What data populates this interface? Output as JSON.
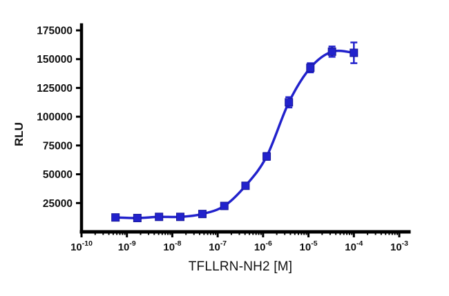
{
  "chart_data": {
    "type": "scatter",
    "title": "",
    "xlabel": "TFLLRN-NH2 [M]",
    "ylabel": "RLU",
    "x_scale": "log10",
    "x_exp_range": [
      -10,
      -3
    ],
    "xtick_exponents": [
      -10,
      -9,
      -8,
      -7,
      -6,
      -5,
      -4,
      -3
    ],
    "xtick_base": "10",
    "ylim": [
      0,
      175000
    ],
    "ytick_values": [
      25000,
      50000,
      75000,
      100000,
      125000,
      150000,
      175000
    ],
    "grid": false,
    "legend": "none",
    "series": [
      {
        "name": "TFLLRN-NH2",
        "marker": "square",
        "color": "#2222cc",
        "marker_edge_color": "#18189a",
        "x": [
          5.6e-10,
          1.7e-09,
          5.1e-09,
          1.5e-08,
          4.6e-08,
          1.4e-07,
          4.1e-07,
          1.2e-06,
          3.7e-06,
          1.1e-05,
          3.3e-05,
          0.0001
        ],
        "y": [
          12500,
          12000,
          13000,
          13000,
          15500,
          22500,
          40000,
          65500,
          112500,
          142500,
          156500,
          155500
        ],
        "yerr": [
          1000,
          800,
          800,
          800,
          1000,
          1500,
          2500,
          3000,
          4500,
          4000,
          4500,
          9000
        ]
      }
    ],
    "axis_color": "#000000",
    "background": "#ffffff"
  }
}
